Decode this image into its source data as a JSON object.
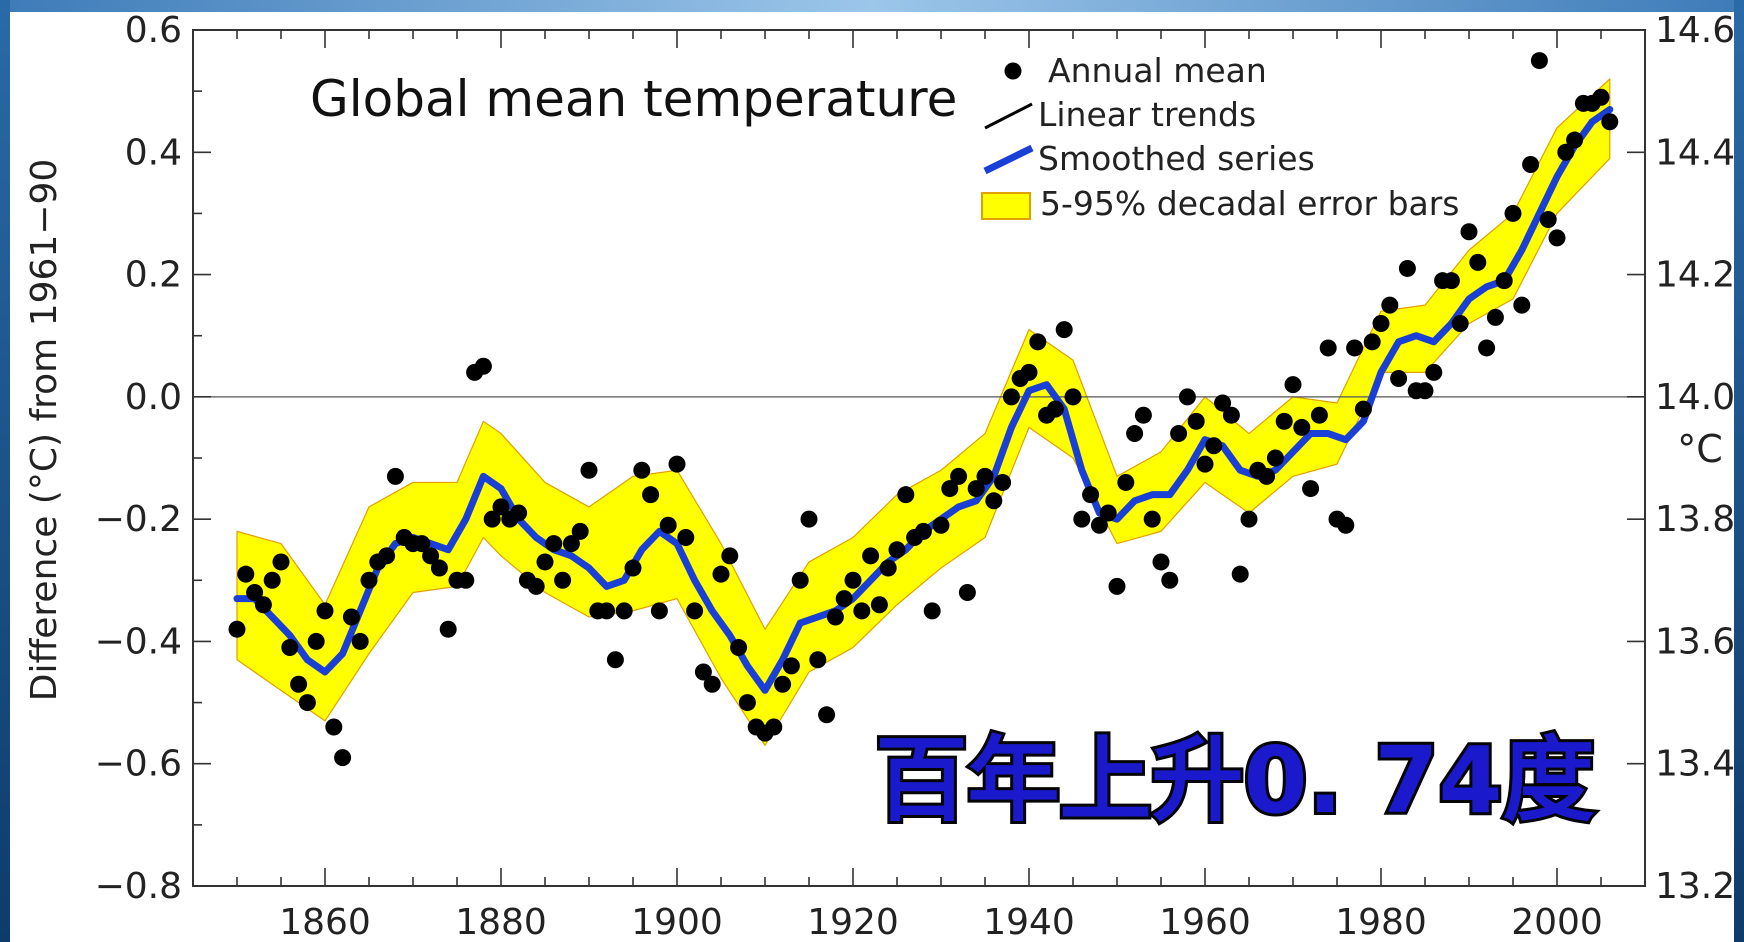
{
  "chart_data": {
    "type": "line",
    "title": "Global mean temperature",
    "ylabel": "Difference (°C) from 1961−90",
    "y2label": "°C",
    "xlabel": "",
    "xlim": [
      1845,
      2010
    ],
    "ylim": [
      -0.8,
      0.6
    ],
    "y2lim": [
      13.2,
      14.6
    ],
    "xticks": [
      1860,
      1880,
      1900,
      1920,
      1940,
      1960,
      1980,
      2000
    ],
    "yticks": [
      -0.8,
      -0.6,
      -0.4,
      -0.2,
      0.0,
      0.2,
      0.4,
      0.6
    ],
    "ytick_labels": [
      "−0.8",
      "−0.6",
      "−0.4",
      "−0.2",
      "0.0",
      "0.2",
      "0.4",
      "0.6"
    ],
    "y2ticks": [
      13.2,
      13.4,
      13.6,
      13.8,
      14.0,
      14.2,
      14.4,
      14.6
    ],
    "y2tick_labels": [
      "13.2",
      "13.4",
      "13.6",
      "13.8",
      "14.0",
      "14.2",
      "14.4",
      "14.6"
    ],
    "zero_line": 0.0,
    "grid": false,
    "legend_position": "top-right",
    "legend": [
      {
        "name": "Annual mean",
        "marker": "dot"
      },
      {
        "name": "Linear trends",
        "marker": "line"
      },
      {
        "name": "Smoothed series",
        "marker": "thick-line"
      },
      {
        "name": "5-95% decadal error bars",
        "marker": "band"
      }
    ],
    "annotation": "百年上升0. 74度",
    "colors": {
      "dots": "#000000",
      "smoothed": "#1a3fd6",
      "band": "#ffff00",
      "band_edge": "#e0a000",
      "annotation_fill": "#1a1acc",
      "annotation_stroke": "#050505",
      "frame": "#1c4e80"
    },
    "series": [
      {
        "name": "Annual mean",
        "x": [
          1850,
          1851,
          1852,
          1853,
          1854,
          1855,
          1856,
          1857,
          1858,
          1859,
          1860,
          1861,
          1862,
          1863,
          1864,
          1865,
          1866,
          1867,
          1868,
          1869,
          1870,
          1871,
          1872,
          1873,
          1874,
          1875,
          1876,
          1877,
          1878,
          1879,
          1880,
          1881,
          1882,
          1883,
          1884,
          1885,
          1886,
          1887,
          1888,
          1889,
          1890,
          1891,
          1892,
          1893,
          1894,
          1895,
          1896,
          1897,
          1898,
          1899,
          1900,
          1901,
          1902,
          1903,
          1904,
          1905,
          1906,
          1907,
          1908,
          1909,
          1910,
          1911,
          1912,
          1913,
          1914,
          1915,
          1916,
          1917,
          1918,
          1919,
          1920,
          1921,
          1922,
          1923,
          1924,
          1925,
          1926,
          1927,
          1928,
          1929,
          1930,
          1931,
          1932,
          1933,
          1934,
          1935,
          1936,
          1937,
          1938,
          1939,
          1940,
          1941,
          1942,
          1943,
          1944,
          1945,
          1946,
          1947,
          1948,
          1949,
          1950,
          1951,
          1952,
          1953,
          1954,
          1955,
          1956,
          1957,
          1958,
          1959,
          1960,
          1961,
          1962,
          1963,
          1964,
          1965,
          1966,
          1967,
          1968,
          1969,
          1970,
          1971,
          1972,
          1973,
          1974,
          1975,
          1976,
          1977,
          1978,
          1979,
          1980,
          1981,
          1982,
          1983,
          1984,
          1985,
          1986,
          1987,
          1988,
          1989,
          1990,
          1991,
          1992,
          1993,
          1994,
          1995,
          1996,
          1997,
          1998,
          1999,
          2000,
          2001,
          2002,
          2003,
          2004,
          2005,
          2006
        ],
        "values": [
          -0.38,
          -0.29,
          -0.32,
          -0.34,
          -0.3,
          -0.27,
          -0.41,
          -0.47,
          -0.5,
          -0.4,
          -0.35,
          -0.54,
          -0.59,
          -0.36,
          -0.4,
          -0.3,
          -0.27,
          -0.26,
          -0.13,
          -0.23,
          -0.24,
          -0.24,
          -0.26,
          -0.28,
          -0.38,
          -0.3,
          -0.3,
          0.04,
          0.05,
          -0.2,
          -0.18,
          -0.2,
          -0.19,
          -0.3,
          -0.31,
          -0.27,
          -0.24,
          -0.3,
          -0.24,
          -0.22,
          -0.12,
          -0.35,
          -0.35,
          -0.43,
          -0.35,
          -0.28,
          -0.12,
          -0.16,
          -0.35,
          -0.21,
          -0.11,
          -0.23,
          -0.35,
          -0.45,
          -0.47,
          -0.29,
          -0.26,
          -0.41,
          -0.5,
          -0.54,
          -0.55,
          -0.54,
          -0.47,
          -0.44,
          -0.3,
          -0.2,
          -0.43,
          -0.52,
          -0.36,
          -0.33,
          -0.3,
          -0.35,
          -0.26,
          -0.34,
          -0.28,
          -0.25,
          -0.16,
          -0.23,
          -0.22,
          -0.35,
          -0.21,
          -0.15,
          -0.13,
          -0.32,
          -0.15,
          -0.13,
          -0.17,
          -0.14,
          0.0,
          0.03,
          0.04,
          0.09,
          -0.03,
          -0.02,
          0.11,
          0.0,
          -0.2,
          -0.16,
          -0.21,
          -0.19,
          -0.31,
          -0.14,
          -0.06,
          -0.03,
          -0.2,
          -0.27,
          -0.3,
          -0.06,
          0.0,
          -0.04,
          -0.11,
          -0.08,
          -0.01,
          -0.03,
          -0.29,
          -0.2,
          -0.12,
          -0.13,
          -0.1,
          -0.04,
          0.02,
          -0.05,
          -0.15,
          -0.03,
          0.08,
          -0.2,
          -0.21,
          0.08,
          -0.02,
          0.09,
          0.12,
          0.15,
          0.03,
          0.21,
          0.01,
          0.01,
          0.04,
          0.19,
          0.19,
          0.12,
          0.27,
          0.22,
          0.08,
          0.13,
          0.19,
          0.3,
          0.15,
          0.38,
          0.55,
          0.29,
          0.26,
          0.4,
          0.42,
          0.48,
          0.48,
          0.49,
          0.45
        ]
      },
      {
        "name": "Smoothed series",
        "x": [
          1850,
          1852,
          1854,
          1856,
          1858,
          1860,
          1862,
          1864,
          1866,
          1868,
          1870,
          1872,
          1874,
          1876,
          1878,
          1880,
          1882,
          1884,
          1886,
          1888,
          1890,
          1892,
          1894,
          1896,
          1898,
          1900,
          1902,
          1904,
          1906,
          1908,
          1910,
          1912,
          1914,
          1916,
          1918,
          1920,
          1922,
          1924,
          1926,
          1928,
          1930,
          1932,
          1934,
          1936,
          1938,
          1940,
          1942,
          1944,
          1946,
          1948,
          1950,
          1952,
          1954,
          1956,
          1958,
          1960,
          1962,
          1964,
          1966,
          1968,
          1970,
          1972,
          1974,
          1976,
          1978,
          1980,
          1982,
          1984,
          1986,
          1988,
          1990,
          1992,
          1994,
          1996,
          1998,
          2000,
          2002,
          2004,
          2006
        ],
        "values": [
          -0.33,
          -0.33,
          -0.36,
          -0.39,
          -0.43,
          -0.45,
          -0.42,
          -0.35,
          -0.28,
          -0.24,
          -0.23,
          -0.24,
          -0.25,
          -0.2,
          -0.13,
          -0.15,
          -0.2,
          -0.23,
          -0.25,
          -0.26,
          -0.28,
          -0.31,
          -0.3,
          -0.25,
          -0.22,
          -0.24,
          -0.3,
          -0.35,
          -0.39,
          -0.44,
          -0.48,
          -0.43,
          -0.37,
          -0.36,
          -0.35,
          -0.33,
          -0.3,
          -0.27,
          -0.25,
          -0.22,
          -0.2,
          -0.18,
          -0.17,
          -0.13,
          -0.05,
          0.01,
          0.02,
          -0.02,
          -0.12,
          -0.19,
          -0.2,
          -0.17,
          -0.16,
          -0.16,
          -0.12,
          -0.07,
          -0.08,
          -0.12,
          -0.13,
          -0.12,
          -0.09,
          -0.06,
          -0.06,
          -0.07,
          -0.04,
          0.04,
          0.09,
          0.1,
          0.09,
          0.12,
          0.16,
          0.18,
          0.19,
          0.24,
          0.3,
          0.36,
          0.41,
          0.45,
          0.47
        ]
      },
      {
        "name": "5-95% decadal error bars",
        "x": [
          1850,
          1855,
          1860,
          1865,
          1870,
          1875,
          1878,
          1880,
          1885,
          1890,
          1895,
          1900,
          1905,
          1910,
          1915,
          1920,
          1925,
          1930,
          1935,
          1940,
          1945,
          1950,
          1955,
          1960,
          1965,
          1970,
          1975,
          1980,
          1985,
          1990,
          1995,
          2000,
          2006
        ],
        "lower": [
          -0.43,
          -0.48,
          -0.53,
          -0.42,
          -0.32,
          -0.31,
          -0.23,
          -0.26,
          -0.32,
          -0.36,
          -0.35,
          -0.33,
          -0.46,
          -0.57,
          -0.45,
          -0.41,
          -0.34,
          -0.28,
          -0.23,
          -0.05,
          -0.1,
          -0.24,
          -0.22,
          -0.14,
          -0.19,
          -0.13,
          -0.11,
          0.04,
          0.04,
          0.12,
          0.16,
          0.3,
          0.39
        ],
        "upper": [
          -0.22,
          -0.24,
          -0.34,
          -0.18,
          -0.14,
          -0.14,
          -0.04,
          -0.06,
          -0.14,
          -0.18,
          -0.13,
          -0.12,
          -0.24,
          -0.38,
          -0.27,
          -0.23,
          -0.16,
          -0.12,
          -0.06,
          0.11,
          0.06,
          -0.13,
          -0.09,
          0.0,
          -0.06,
          0.0,
          -0.01,
          0.14,
          0.15,
          0.24,
          0.3,
          0.44,
          0.52
        ]
      }
    ]
  }
}
